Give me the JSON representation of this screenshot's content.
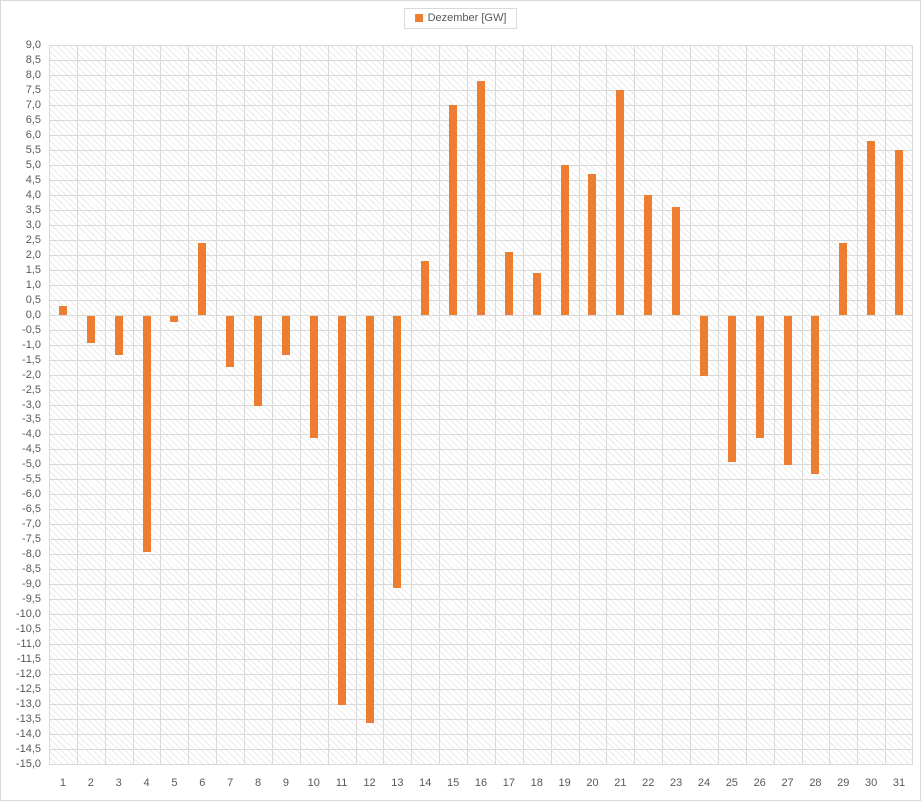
{
  "legend": {
    "label": "Dezember [GW]",
    "swatch_color": "#ED7D31"
  },
  "chart_data": {
    "type": "bar",
    "title": "",
    "xlabel": "",
    "ylabel": "",
    "categories": [
      "1",
      "2",
      "3",
      "4",
      "5",
      "6",
      "7",
      "8",
      "9",
      "10",
      "11",
      "12",
      "13",
      "14",
      "15",
      "16",
      "17",
      "18",
      "19",
      "20",
      "21",
      "22",
      "23",
      "24",
      "25",
      "26",
      "27",
      "28",
      "29",
      "30",
      "31"
    ],
    "series": [
      {
        "name": "Dezember [GW]",
        "values": [
          0.3,
          -0.9,
          -1.3,
          -7.9,
          -0.2,
          2.4,
          -1.7,
          -3.0,
          -1.3,
          -4.1,
          -13.0,
          -13.6,
          -9.1,
          1.8,
          7.0,
          7.8,
          2.1,
          1.4,
          5.0,
          4.7,
          7.5,
          4.0,
          3.6,
          -2.0,
          -4.9,
          -4.1,
          -5.0,
          -5.3,
          2.4,
          5.8,
          5.5
        ]
      }
    ],
    "ylim": [
      -15.0,
      9.0
    ],
    "ytick_step": 0.5,
    "y_tick_labels": [
      "9,0",
      "8,5",
      "8,0",
      "7,5",
      "7,0",
      "6,5",
      "6,0",
      "5,5",
      "5,0",
      "4,5",
      "4,0",
      "3,5",
      "3,0",
      "2,5",
      "2,0",
      "1,5",
      "1,0",
      "0,5",
      "0,0",
      "-0,5",
      "-1,0",
      "-1,5",
      "-2,0",
      "-2,5",
      "-3,0",
      "-3,5",
      "-4,0",
      "-4,5",
      "-5,0",
      "-5,5",
      "-6,0",
      "-6,5",
      "-7,0",
      "-7,5",
      "-8,0",
      "-8,5",
      "-9,0",
      "-9,5",
      "-10,0",
      "-10,5",
      "-11,0",
      "-11,5",
      "-12,0",
      "-12,5",
      "-13,0",
      "-13,5",
      "-14,0",
      "-14,5",
      "-15,0"
    ],
    "bar_color": "#ED7D31",
    "grid": true,
    "gridline_color": "#d9d9d9",
    "plot_background_pattern": "diagonal-hatch",
    "axis_text_color": "#595959",
    "legend_position": "top-center"
  }
}
